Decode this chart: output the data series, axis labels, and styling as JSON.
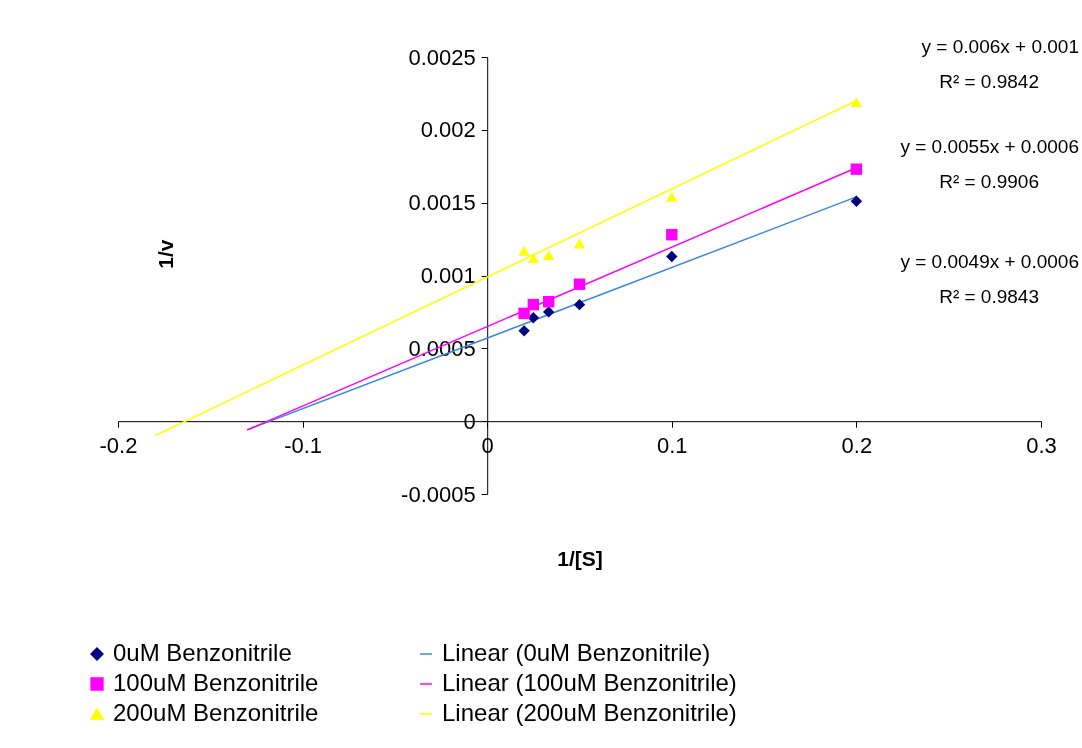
{
  "chart_data": {
    "type": "scatter",
    "xlabel": "1/[S]",
    "ylabel": "1/v",
    "xlim": [
      -0.2,
      0.3
    ],
    "xticks": [
      -0.2,
      -0.1,
      0,
      0.1,
      0.2,
      0.3
    ],
    "ylim": [
      -0.0005,
      0.0025
    ],
    "yticks": [
      -0.0005,
      0,
      0.0005,
      0.001,
      0.0015,
      0.002,
      0.0025
    ],
    "grid": false,
    "legend": "bottom",
    "series": [
      {
        "name": "0uM Benzonitrile",
        "marker": "diamond",
        "color": "#000080",
        "x": [
          0.02,
          0.025,
          0.0333,
          0.05,
          0.1,
          0.2
        ],
        "values": [
          0.00062,
          0.00071,
          0.00075,
          0.0008,
          0.00113,
          0.00151
        ]
      },
      {
        "name": "100uM Benzonitrile",
        "marker": "square",
        "color": "#ff00ff",
        "x": [
          0.02,
          0.025,
          0.0333,
          0.05,
          0.1,
          0.2
        ],
        "values": [
          0.00074,
          0.0008,
          0.00082,
          0.00094,
          0.00128,
          0.00173
        ]
      },
      {
        "name": "200uM Benzonitrile",
        "marker": "triangle",
        "color": "#ffff00",
        "x": [
          0.02,
          0.025,
          0.0333,
          0.05,
          0.1,
          0.2
        ],
        "values": [
          0.00117,
          0.00112,
          0.00114,
          0.00122,
          0.00154,
          0.00219
        ]
      },
      {
        "name": "Linear (0uM Benzonitrile)",
        "type": "line",
        "marker": "none",
        "color": "#3a8ad8",
        "x": [
          -0.13,
          0.2
        ],
        "values": [
          -6e-05,
          0.00154
        ]
      },
      {
        "name": "Linear (100uM Benzonitrile)",
        "type": "line",
        "marker": "none",
        "color": "#ff00ff",
        "x": [
          -0.13,
          0.2
        ],
        "values": [
          -6e-05,
          0.00174
        ]
      },
      {
        "name": "Linear (200uM Benzonitrile)",
        "type": "line",
        "marker": "none",
        "color": "#ffff00",
        "x": [
          -0.18,
          0.2
        ],
        "values": [
          -0.0001,
          0.0022
        ]
      }
    ],
    "annotations": [
      "y = 0.006x + 0.001",
      "R² = 0.9842",
      "y = 0.0055x + 0.0006",
      "R² = 0.9906",
      "y = 0.0049x + 0.0006",
      "R² = 0.9843"
    ]
  }
}
